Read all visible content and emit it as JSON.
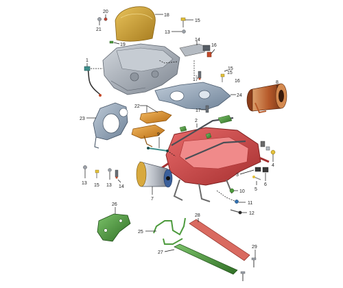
{
  "diagram": {
    "callouts": {
      "c1": "1",
      "c2": "2",
      "c3": "3",
      "c4": "4",
      "c5": "5",
      "c6": "6",
      "c7": "7",
      "c8": "8",
      "c9": "9",
      "c10": "10",
      "c11": "11",
      "c12": "12",
      "c13a": "13",
      "c13b": "13",
      "c13c": "13",
      "c14a": "14",
      "c14b": "14",
      "c15a": "15",
      "c15b": "15",
      "c15c": "15",
      "c15d": "15",
      "c16a": "16",
      "c16b": "16",
      "c17a": "17",
      "c17b": "17",
      "c18": "18",
      "c19": "19",
      "c20": "20",
      "c21": "21",
      "c22": "22",
      "c23": "23",
      "c24": "24",
      "c25": "25",
      "c26": "26",
      "c27": "27",
      "c28": "28",
      "c29": "29"
    },
    "colors": {
      "subframe": "#d64545",
      "subframe_dark": "#a52f2f",
      "gold_cover": "#c9a038",
      "gray_housing": "#aeb4bb",
      "steel_blue": "#8fa2b8",
      "orange_bracket": "#e1962a",
      "green_part": "#4c9a3c",
      "copper_motor": "#b65a2a",
      "chrome_motor": "#b9bec6",
      "connector_teal": "#3e8f8c",
      "red_rail": "#d96a60"
    }
  }
}
